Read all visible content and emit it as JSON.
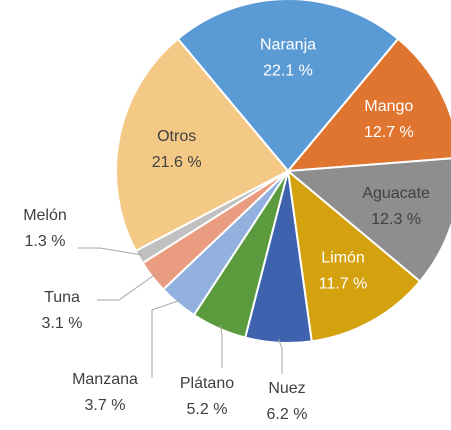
{
  "chart_data": {
    "type": "pie",
    "categories": [
      "Naranja",
      "Mango",
      "Aguacate",
      "Limón",
      "Nuez",
      "Plátano",
      "Manzana",
      "Tuna",
      "Melón",
      "Otros"
    ],
    "values": [
      22.1,
      12.7,
      12.3,
      11.7,
      6.2,
      5.2,
      3.7,
      3.1,
      1.3,
      21.6
    ],
    "value_labels": [
      "22.1 %",
      "12.7 %",
      "12.3 %",
      "11.7 %",
      "6.2 %",
      "5.2 %",
      "3.7 %",
      "3.1 %",
      "1.3 %",
      "21.6 %"
    ],
    "colors": [
      "#5b9bd5",
      "#e0752f",
      "#8e8e8e",
      "#d4a20f",
      "#3f62ae",
      "#5b9a3d",
      "#93b1de",
      "#e99c7f",
      "#c0c0c0",
      "#f3c985"
    ]
  }
}
